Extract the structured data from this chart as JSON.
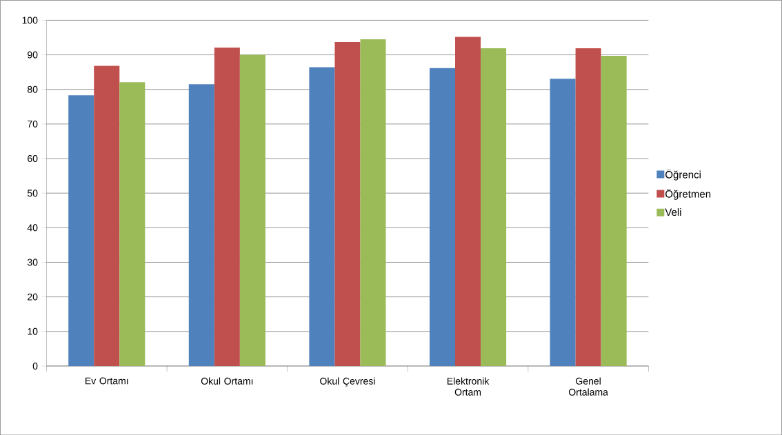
{
  "chart_data": {
    "type": "bar",
    "categories": [
      "Ev Ortamı",
      "Okul Ortamı",
      "Okul Çevresi",
      "Elektronik Ortam",
      "Genel Ortalama"
    ],
    "series": [
      {
        "name": "Öğrenci",
        "color": "#4f81bd",
        "values": [
          78.3,
          81.5,
          86.4,
          86.2,
          83.1
        ]
      },
      {
        "name": "Öğretmen",
        "color": "#c0504d",
        "values": [
          86.8,
          92.1,
          93.7,
          95.2,
          91.9
        ]
      },
      {
        "name": "Veli",
        "color": "#9bbb59",
        "values": [
          82.1,
          90.0,
          94.5,
          91.9,
          89.7
        ]
      }
    ],
    "ylim": [
      0,
      100
    ],
    "yticks": [
      0,
      10,
      20,
      30,
      40,
      50,
      60,
      70,
      80,
      90,
      100
    ],
    "grid": "y",
    "legend": "right"
  }
}
